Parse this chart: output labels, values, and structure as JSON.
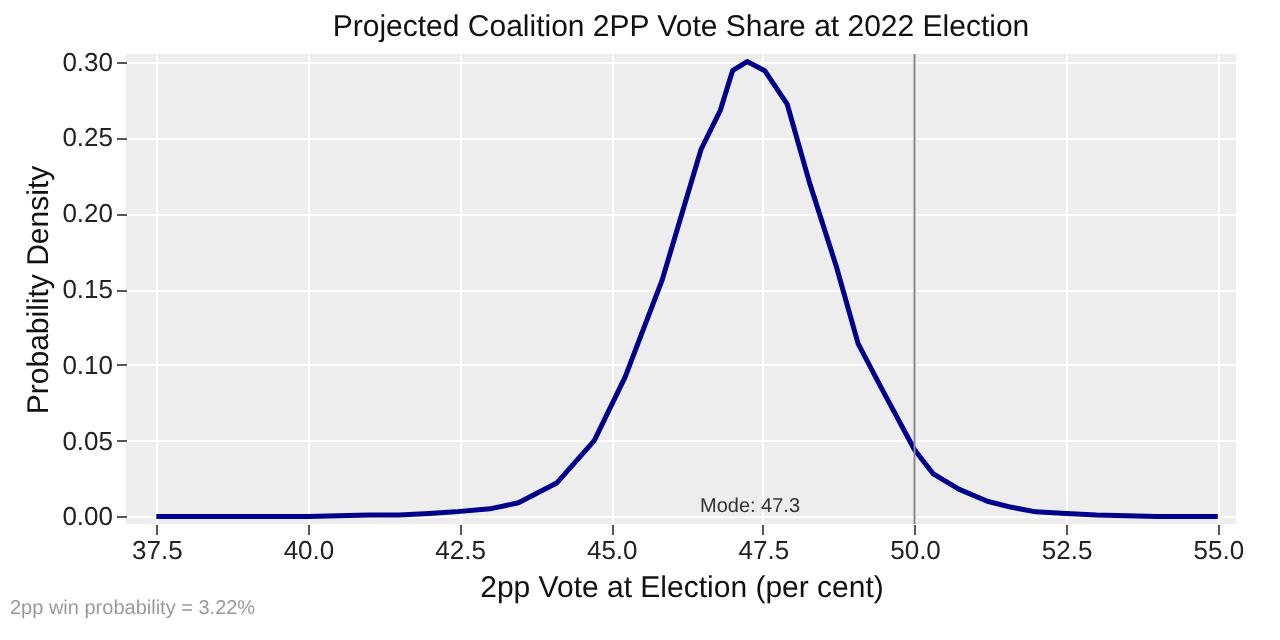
{
  "chart_data": {
    "type": "line",
    "title": "Projected Coalition 2PP Vote Share at 2022 Election",
    "xlabel": "2pp Vote at Election (per cent)",
    "ylabel": "Probability Density",
    "x": [
      37.5,
      39.0,
      40.0,
      41.0,
      41.5,
      42.0,
      42.42,
      43.0,
      43.47,
      44.1,
      44.72,
      45.23,
      45.84,
      46.48,
      46.8,
      47.0,
      47.24,
      47.53,
      47.9,
      48.27,
      48.71,
      49.07,
      49.45,
      50.0,
      50.31,
      50.73,
      51.2,
      51.6,
      52.0,
      52.5,
      53.0,
      54.0,
      55.0
    ],
    "series": [
      {
        "color": "#00008b",
        "values": [
          0.0,
          0.0,
          0.0,
          0.001,
          0.001,
          0.002,
          0.003,
          0.005,
          0.009,
          0.022,
          0.05,
          0.092,
          0.156,
          0.242,
          0.268,
          0.294,
          0.3,
          0.294,
          0.272,
          0.22,
          0.165,
          0.114,
          0.085,
          0.044,
          0.028,
          0.018,
          0.01,
          0.006,
          0.003,
          0.002,
          0.001,
          0.0,
          0.0
        ]
      }
    ],
    "xlim": [
      37.0,
      55.3
    ],
    "ylim": [
      -0.005,
      0.305
    ],
    "xticks": [
      {
        "value": 37.5,
        "label": "37.5"
      },
      {
        "value": 40,
        "label": "40.0"
      },
      {
        "value": 42.5,
        "label": "42.5"
      },
      {
        "value": 45,
        "label": "45.0"
      },
      {
        "value": 47.5,
        "label": "47.5"
      },
      {
        "value": 50,
        "label": "50.0"
      },
      {
        "value": 52.5,
        "label": "52.5"
      },
      {
        "value": 55,
        "label": "55.0"
      }
    ],
    "yticks": [
      {
        "value": 0,
        "label": "0.00"
      },
      {
        "value": 0.05,
        "label": "0.05"
      },
      {
        "value": 0.1,
        "label": "0.10"
      },
      {
        "value": 0.15,
        "label": "0.15"
      },
      {
        "value": 0.2,
        "label": "0.20"
      },
      {
        "value": 0.25,
        "label": "0.25"
      },
      {
        "value": 0.3,
        "label": "0.30"
      }
    ],
    "grid": true,
    "line_style": "solid",
    "marker": "none",
    "ref_lines": [
      {
        "axis": "x",
        "value": 50,
        "color": "#888888"
      }
    ],
    "annotations": [
      "Mode: 47.3",
      "2pp win probability = 3.22%"
    ]
  }
}
